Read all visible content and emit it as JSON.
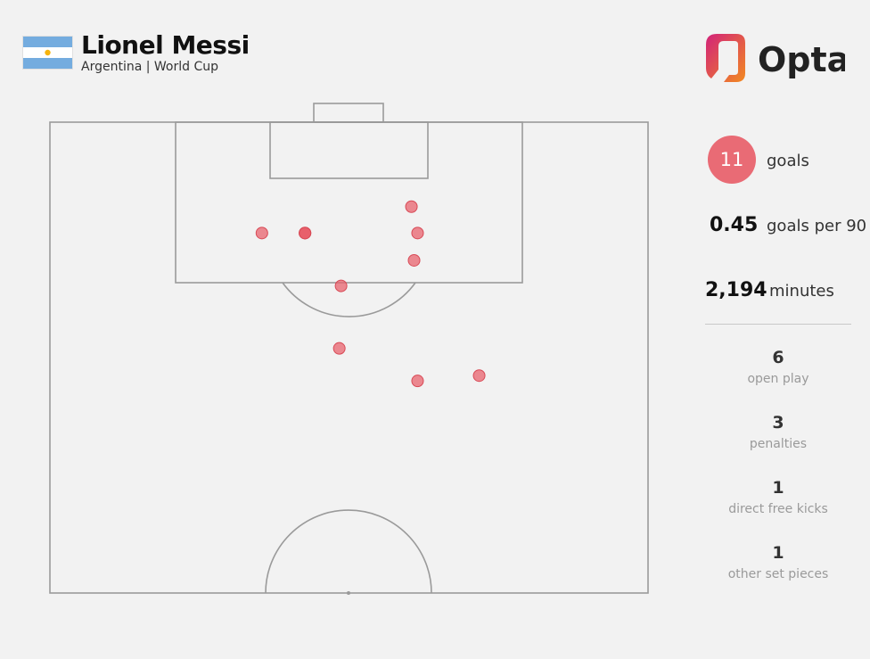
{
  "header": {
    "player_name": "Lionel Messi",
    "subtitle": "Argentina | World Cup",
    "flag_icon": "argentina-flag",
    "brand": "Opta"
  },
  "colors": {
    "background": "#f2f2f2",
    "pitch_line": "#9a9a9a",
    "shot_fill": "#e8636e",
    "shot_highlight": "#e02f3c",
    "badge": "#e96b75",
    "flag_blue": "#74acdf",
    "flag_sun": "#f6b40e",
    "logo_magenta": "#d2227a",
    "logo_orange": "#f28a20"
  },
  "stats": {
    "goals": {
      "value": "11",
      "label": "goals"
    },
    "goals_per_90": {
      "value": "0.45",
      "label": "goals per 90"
    },
    "minutes": {
      "value": "2,194",
      "label": "minutes"
    }
  },
  "breakdown": [
    {
      "value": "6",
      "label": "open play"
    },
    {
      "value": "3",
      "label": "penalties"
    },
    {
      "value": "1",
      "label": "direct free kicks"
    },
    {
      "value": "1",
      "label": "other set pieces"
    }
  ],
  "chart_data": {
    "type": "scatter",
    "title": "",
    "x_units": "yards from left touchline",
    "y_units": "yards from goal line",
    "xlim": [
      0,
      68
    ],
    "ylim": [
      0,
      53.5
    ],
    "points": [
      {
        "x": 41.1,
        "y": 9.6
      },
      {
        "x": 29.0,
        "y": 12.6,
        "highlight": true
      },
      {
        "x": 29.0,
        "y": 12.6
      },
      {
        "x": 29.0,
        "y": 12.6
      },
      {
        "x": 24.1,
        "y": 12.6
      },
      {
        "x": 41.8,
        "y": 12.6
      },
      {
        "x": 41.4,
        "y": 15.7
      },
      {
        "x": 33.1,
        "y": 18.6
      },
      {
        "x": 32.9,
        "y": 25.7
      },
      {
        "x": 41.8,
        "y": 29.4
      },
      {
        "x": 48.8,
        "y": 28.8
      }
    ]
  }
}
